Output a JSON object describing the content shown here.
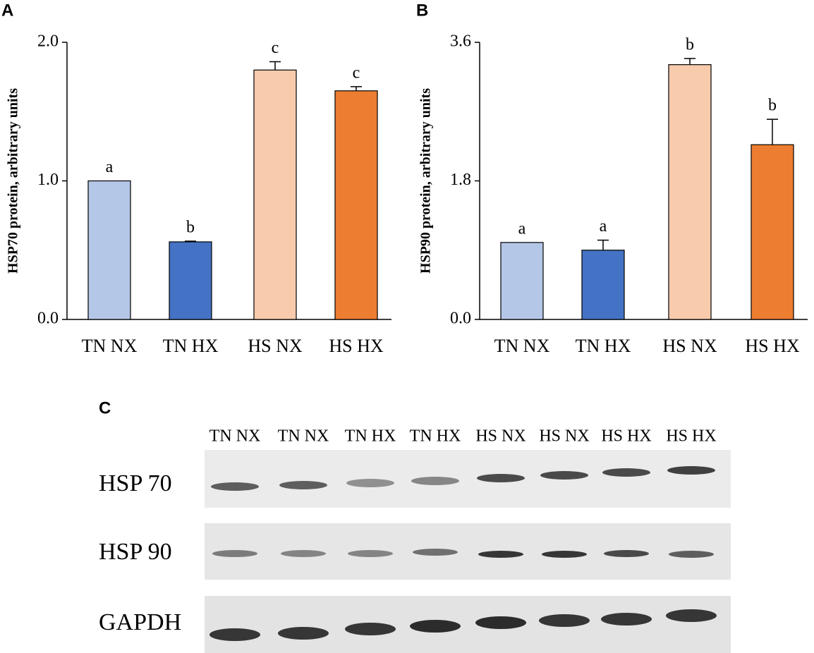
{
  "chart_data": [
    {
      "type": "bar",
      "panel": "A",
      "ylabel": "HSP70 protein, arbitrary units",
      "categories": [
        "TN NX",
        "TN HX",
        "HS NX",
        "HS HX"
      ],
      "values": [
        1.0,
        0.56,
        1.8,
        1.65
      ],
      "errors": [
        0,
        0.005,
        0.06,
        0.03
      ],
      "annotations": [
        "a",
        "b",
        "c",
        "c"
      ],
      "colors": [
        "#b4c7e7",
        "#4472c4",
        "#f8cbad",
        "#ed7d31"
      ],
      "ylim": [
        0,
        2.0
      ],
      "yticks": [
        {
          "value": 0,
          "label": "0.0"
        },
        {
          "value": 1,
          "label": "1.0"
        },
        {
          "value": 2,
          "label": "2.0"
        }
      ]
    },
    {
      "type": "bar",
      "panel": "B",
      "ylabel": "HSP90 protein, arbitrary units",
      "categories": [
        "TN NX",
        "TN HX",
        "HS NX",
        "HS HX"
      ],
      "values": [
        1.0,
        0.9,
        3.31,
        2.27
      ],
      "errors": [
        0,
        0.13,
        0.08,
        0.33
      ],
      "annotations": [
        "a",
        "a",
        "b",
        "b"
      ],
      "colors": [
        "#b4c7e7",
        "#4472c4",
        "#f8cbad",
        "#ed7d31"
      ],
      "ylim": [
        0,
        3.6
      ],
      "yticks": [
        {
          "value": 0,
          "label": "0.0"
        },
        {
          "value": 1.8,
          "label": "1.8"
        },
        {
          "value": 3.6,
          "label": "3.6"
        }
      ]
    }
  ],
  "blot": {
    "panel": "C",
    "lanes": [
      "TN NX",
      "TN NX",
      "TN HX",
      "TN HX",
      "HS NX",
      "HS NX",
      "HS HX",
      "HS HX"
    ],
    "rows": [
      "HSP 70",
      "HSP 90",
      "GAPDH"
    ]
  }
}
